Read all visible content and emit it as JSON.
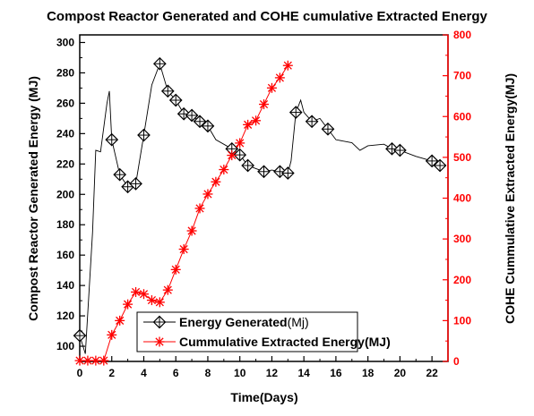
{
  "chart_data": {
    "type": "line",
    "title": "Compost Reactor Generated and COHE cumulative Extracted Energy",
    "xlabel": "Time(Days)",
    "ylabel_left": "Compost Reactor Generated Energy (MJ)",
    "ylabel_right": "COHE Cummulative Extracted Energy(MJ)",
    "xlim": [
      0,
      23
    ],
    "ylim_left": [
      90,
      305
    ],
    "ylim_right": [
      0,
      800
    ],
    "x_ticks": [
      "0",
      "2",
      "4",
      "6",
      "8",
      "10",
      "12",
      "14",
      "16",
      "18",
      "20",
      "22"
    ],
    "y_left_ticks": [
      "100",
      "120",
      "140",
      "160",
      "180",
      "200",
      "220",
      "240",
      "260",
      "280",
      "300"
    ],
    "y_right_ticks": [
      "0",
      "100",
      "200",
      "300",
      "400",
      "500",
      "600",
      "700",
      "800"
    ],
    "colors": {
      "series1": "#000000",
      "series2": "#ff0000",
      "right_axis": "#ff0000"
    },
    "legend_position": "bottom-center",
    "series": [
      {
        "name": "Energy Generated(Mj)",
        "label_main": "Energy Generated",
        "label_unit": "(Mj)",
        "axis": "left",
        "marker": "diamond-cross",
        "line": [
          [
            0,
            107
          ],
          [
            0.35,
            95
          ],
          [
            0.8,
            175
          ],
          [
            1,
            229
          ],
          [
            1.3,
            228
          ],
          [
            1.7,
            260
          ],
          [
            1.85,
            268
          ],
          [
            2,
            236
          ],
          [
            2.5,
            213
          ],
          [
            3,
            205
          ],
          [
            3.5,
            207
          ],
          [
            4,
            239
          ],
          [
            4.5,
            272
          ],
          [
            5,
            286
          ],
          [
            5.5,
            268
          ],
          [
            6,
            262
          ],
          [
            6.5,
            253
          ],
          [
            7,
            252
          ],
          [
            7.5,
            248
          ],
          [
            8,
            245
          ],
          [
            8.5,
            236
          ],
          [
            9.5,
            230
          ],
          [
            10,
            226
          ],
          [
            10.5,
            219
          ],
          [
            11,
            217
          ],
          [
            11.5,
            215
          ],
          [
            12,
            216
          ],
          [
            12.5,
            215
          ],
          [
            13,
            214
          ],
          [
            13.2,
            222
          ],
          [
            13.5,
            254
          ],
          [
            13.8,
            262
          ],
          [
            14,
            254
          ],
          [
            14.5,
            248
          ],
          [
            15,
            250
          ],
          [
            15.5,
            243
          ],
          [
            16,
            236
          ],
          [
            17,
            234
          ],
          [
            17.5,
            229
          ],
          [
            18,
            232
          ],
          [
            19,
            233
          ],
          [
            19.5,
            230
          ],
          [
            20,
            229
          ],
          [
            21,
            225
          ],
          [
            22,
            222
          ],
          [
            22.5,
            219
          ]
        ],
        "points": [
          [
            0,
            107
          ],
          [
            2,
            236
          ],
          [
            2.5,
            213
          ],
          [
            3,
            205
          ],
          [
            3.5,
            207
          ],
          [
            4,
            239
          ],
          [
            5,
            286
          ],
          [
            5.5,
            268
          ],
          [
            6,
            262
          ],
          [
            6.5,
            253
          ],
          [
            7,
            252
          ],
          [
            7.5,
            248
          ],
          [
            8,
            245
          ],
          [
            9.5,
            230
          ],
          [
            10,
            226
          ],
          [
            10.5,
            219
          ],
          [
            11.5,
            215
          ],
          [
            12.5,
            215
          ],
          [
            13,
            214
          ],
          [
            13.5,
            254
          ],
          [
            14.5,
            248
          ],
          [
            15.5,
            243
          ],
          [
            19.5,
            230
          ],
          [
            20,
            229
          ],
          [
            22,
            222
          ],
          [
            22.5,
            219
          ]
        ]
      },
      {
        "name": "Cummulative Extracted Energy(MJ)",
        "label_main": "Cummulative Extracted Energy(MJ)",
        "label_unit": "",
        "axis": "right",
        "marker": "asterisk",
        "points": [
          [
            0,
            2
          ],
          [
            0.5,
            2
          ],
          [
            1,
            2
          ],
          [
            1.5,
            2
          ],
          [
            2,
            65
          ],
          [
            2.5,
            100
          ],
          [
            3,
            140
          ],
          [
            3.5,
            170
          ],
          [
            4,
            165
          ],
          [
            4.5,
            150
          ],
          [
            5,
            145
          ],
          [
            5.5,
            175
          ],
          [
            6,
            225
          ],
          [
            6.5,
            275
          ],
          [
            7,
            320
          ],
          [
            7.5,
            375
          ],
          [
            8,
            410
          ],
          [
            8.5,
            440
          ],
          [
            9,
            470
          ],
          [
            9.5,
            505
          ],
          [
            10,
            535
          ],
          [
            10.5,
            580
          ],
          [
            11,
            590
          ],
          [
            11.5,
            630
          ],
          [
            12,
            670
          ],
          [
            12.5,
            695
          ],
          [
            13,
            725
          ]
        ]
      }
    ]
  }
}
